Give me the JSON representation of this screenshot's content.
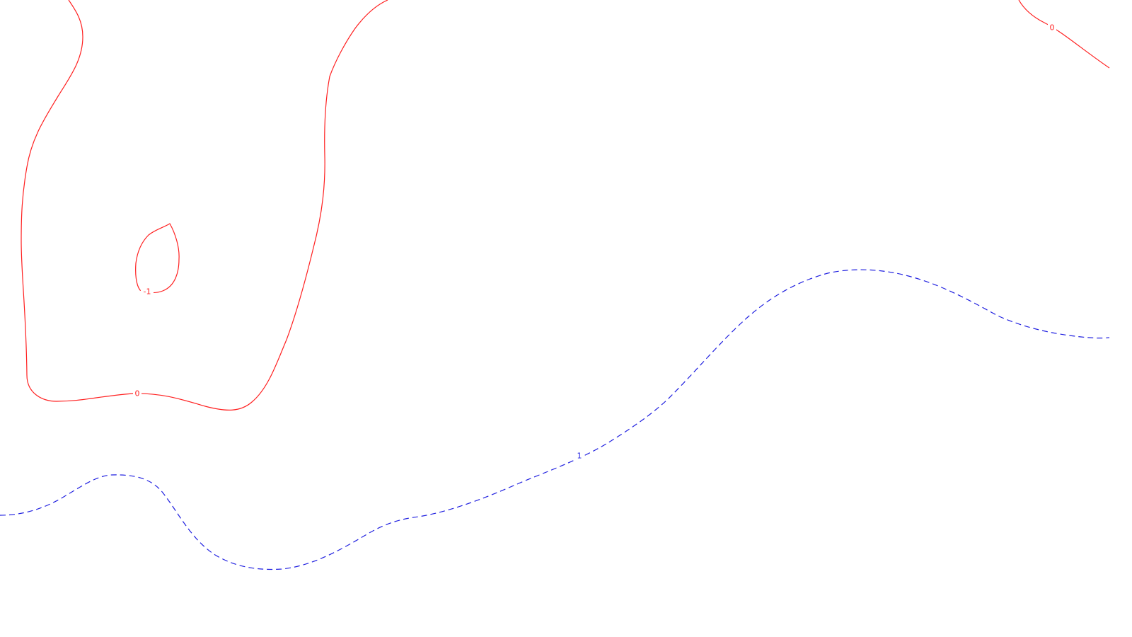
{
  "map": {
    "colors": {
      "background": "#ffffff",
      "contour_solid": "#ff2020",
      "contour_dashed": "#2020e0"
    },
    "contours": [
      {
        "level": "0",
        "label": "0",
        "style": "solid",
        "color": "#ff2020"
      },
      {
        "level": "-1",
        "label": "-1",
        "style": "solid",
        "color": "#ff2020"
      },
      {
        "level": "0",
        "label": "0",
        "style": "solid",
        "color": "#ff2020"
      },
      {
        "level": "1",
        "label": "1",
        "style": "dashed",
        "color": "#2020e0"
      }
    ]
  }
}
